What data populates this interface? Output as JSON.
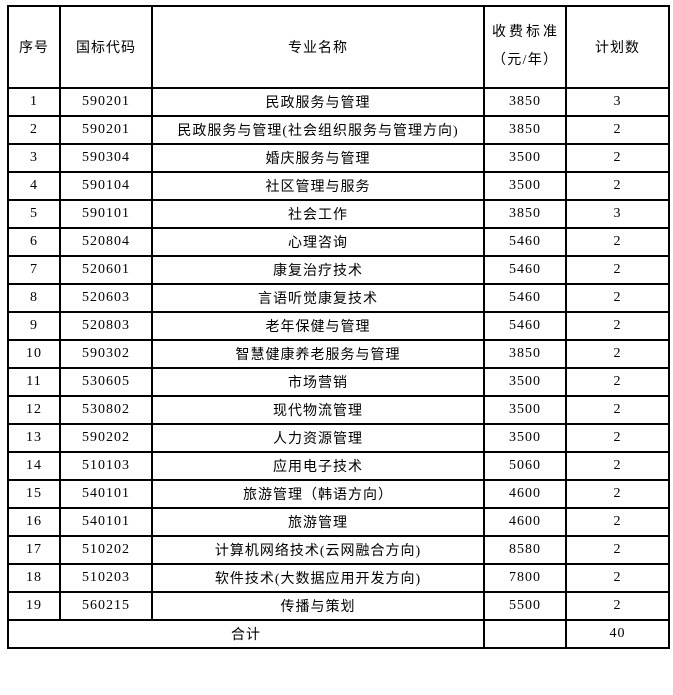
{
  "headers": {
    "index": "序号",
    "code": "国标代码",
    "name": "专业名称",
    "fee": "收费标准（元/年）",
    "plan": "计划数"
  },
  "rows": [
    {
      "index": "1",
      "code": "590201",
      "name": "民政服务与管理",
      "fee": "3850",
      "plan": "3"
    },
    {
      "index": "2",
      "code": "590201",
      "name": "民政服务与管理(社会组织服务与管理方向)",
      "fee": "3850",
      "plan": "2"
    },
    {
      "index": "3",
      "code": "590304",
      "name": "婚庆服务与管理",
      "fee": "3500",
      "plan": "2"
    },
    {
      "index": "4",
      "code": "590104",
      "name": "社区管理与服务",
      "fee": "3500",
      "plan": "2"
    },
    {
      "index": "5",
      "code": "590101",
      "name": "社会工作",
      "fee": "3850",
      "plan": "3"
    },
    {
      "index": "6",
      "code": "520804",
      "name": "心理咨询",
      "fee": "5460",
      "plan": "2"
    },
    {
      "index": "7",
      "code": "520601",
      "name": "康复治疗技术",
      "fee": "5460",
      "plan": "2"
    },
    {
      "index": "8",
      "code": "520603",
      "name": "言语听觉康复技术",
      "fee": "5460",
      "plan": "2"
    },
    {
      "index": "9",
      "code": "520803",
      "name": "老年保健与管理",
      "fee": "5460",
      "plan": "2"
    },
    {
      "index": "10",
      "code": "590302",
      "name": "智慧健康养老服务与管理",
      "fee": "3850",
      "plan": "2"
    },
    {
      "index": "11",
      "code": "530605",
      "name": "市场营销",
      "fee": "3500",
      "plan": "2"
    },
    {
      "index": "12",
      "code": "530802",
      "name": "现代物流管理",
      "fee": "3500",
      "plan": "2"
    },
    {
      "index": "13",
      "code": "590202",
      "name": "人力资源管理",
      "fee": "3500",
      "plan": "2"
    },
    {
      "index": "14",
      "code": "510103",
      "name": "应用电子技术",
      "fee": "5060",
      "plan": "2"
    },
    {
      "index": "15",
      "code": "540101",
      "name": "旅游管理（韩语方向）",
      "fee": "4600",
      "plan": "2"
    },
    {
      "index": "16",
      "code": "540101",
      "name": "旅游管理",
      "fee": "4600",
      "plan": "2"
    },
    {
      "index": "17",
      "code": "510202",
      "name": "计算机网络技术(云网融合方向)",
      "fee": "8580",
      "plan": "2"
    },
    {
      "index": "18",
      "code": "510203",
      "name": "软件技术(大数据应用开发方向)",
      "fee": "7800",
      "plan": "2"
    },
    {
      "index": "19",
      "code": "560215",
      "name": "传播与策划",
      "fee": "5500",
      "plan": "2"
    }
  ],
  "total": {
    "label": "合计",
    "plan": "40"
  }
}
